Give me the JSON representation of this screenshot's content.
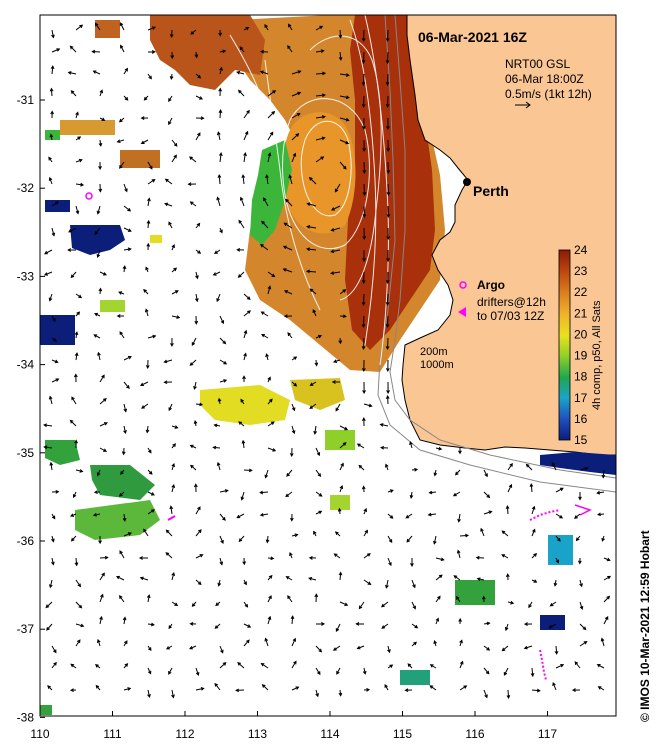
{
  "map": {
    "title": "06-Mar-2021 16Z",
    "product": {
      "line1": "NRT00 GSL",
      "line2": "06-Mar 18:00Z",
      "line3": "0.5m/s (1kt 12h)"
    },
    "city": "Perth",
    "argo_label": "Argo",
    "drifters": {
      "line1": "drifters@12h",
      "line2": "to 07/03 12Z"
    },
    "isobaths": {
      "line1": "200m",
      "line2": "1000m"
    },
    "colorbar": {
      "label": "4h comp, p50, All Sats",
      "min": 15,
      "max": 24,
      "ticks": [
        "15",
        "16",
        "17",
        "18",
        "19",
        "20",
        "21",
        "22",
        "23",
        "24"
      ]
    },
    "credit": "© IMOS 10-Mar-2021 12:59 Hobart",
    "x_ticks": [
      "110",
      "111",
      "112",
      "113",
      "114",
      "115",
      "116",
      "117"
    ],
    "y_ticks": [
      "-31",
      "-32",
      "-33",
      "-34",
      "-35",
      "-36",
      "-37",
      "-38"
    ],
    "colors": {
      "land": "#f9c694",
      "sst_warm": "#b33a0a",
      "sst_mid": "#d9861f",
      "argo": "#ff00ff",
      "cold": "#0a1e7a"
    }
  }
}
